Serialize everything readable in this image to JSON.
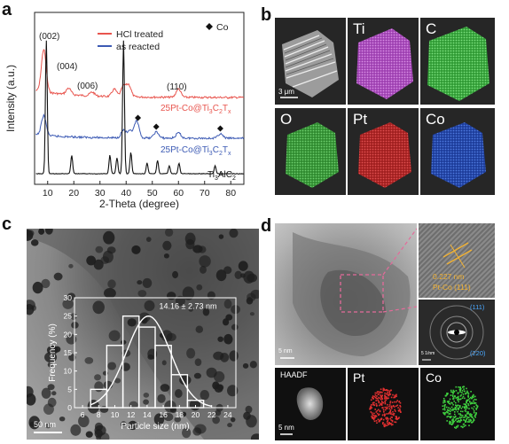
{
  "panels": {
    "a": {
      "letter": "a",
      "legend": [
        "HCl treated",
        "as reacted"
      ],
      "co_marker_label": "Co",
      "curve_labels": {
        "hcl_prefix": "25Pt-Co@Ti",
        "asr_prefix": "25Pt-Co@Ti",
        "ref_prefix": "Ti",
        "ref_suffix": "AlC"
      },
      "peaks": [
        "(002)",
        "(004)",
        "(006)",
        "(110)"
      ]
    },
    "b": {
      "letter": "b",
      "tiles": [
        "Ti",
        "C",
        "O",
        "Pt",
        "Co"
      ],
      "scale_bar": "3 μm"
    },
    "c": {
      "letter": "c",
      "scale_bar": "50 nm",
      "stats": "14.16 ± 2.73 nm"
    },
    "d": {
      "letter": "d",
      "lattice_spacing": "0.227 nm",
      "lattice_plane": "Pt-Co (111)",
      "saed_rings": [
        "(111)",
        "(220)"
      ],
      "scale_bar_hr": "5 nm",
      "saed_scale": "5 1/nm",
      "eds_labels": [
        "HAADF",
        "Pt",
        "Co"
      ],
      "scale_bar_eds": "5 nm"
    }
  },
  "chart_data": [
    {
      "type": "line",
      "title": "",
      "xlabel": "2-Theta (degree)",
      "ylabel": "Intensity (a.u.)",
      "xlim": [
        5,
        85
      ],
      "xticks": [
        10,
        20,
        30,
        40,
        50,
        60,
        70,
        80
      ],
      "yticks_shown": false,
      "legend_position": "top-center",
      "series": [
        {
          "name": "HCl treated",
          "color": "#e8554e",
          "peaks": [
            {
              "x": 8.5,
              "h": 0.8
            },
            {
              "x": 18.0,
              "h": 0.12
            },
            {
              "x": 27.0,
              "h": 0.07
            },
            {
              "x": 35.5,
              "h": 0.14
            },
            {
              "x": 39.0,
              "h": 0.2
            },
            {
              "x": 41.0,
              "h": 0.22
            },
            {
              "x": 60.0,
              "h": 0.16
            }
          ],
          "label": "25Pt-Co@Ti3C2Tx"
        },
        {
          "name": "as reacted",
          "color": "#3c5ab4",
          "peaks": [
            {
              "x": 8.5,
              "h": 0.45
            },
            {
              "x": 39.0,
              "h": 0.18
            },
            {
              "x": 41.5,
              "h": 0.15
            },
            {
              "x": 44.0,
              "h": 0.38
            },
            {
              "x": 51.5,
              "h": 0.14
            },
            {
              "x": 60.0,
              "h": 0.12
            },
            {
              "x": 76.0,
              "h": 0.1
            }
          ],
          "label": "25Pt-Co@Ti3C2Tx"
        },
        {
          "name": "",
          "color": "#111111",
          "peaks": [
            {
              "x": 9.5,
              "h": 1.0
            },
            {
              "x": 19.2,
              "h": 0.14
            },
            {
              "x": 33.8,
              "h": 0.14
            },
            {
              "x": 36.5,
              "h": 0.12
            },
            {
              "x": 39.0,
              "h": 1.0
            },
            {
              "x": 41.8,
              "h": 0.16
            },
            {
              "x": 48.0,
              "h": 0.08
            },
            {
              "x": 52.0,
              "h": 0.1
            },
            {
              "x": 56.5,
              "h": 0.06
            },
            {
              "x": 60.2,
              "h": 0.08
            },
            {
              "x": 74.0,
              "h": 0.06
            }
          ],
          "label": "Ti3AlC2"
        }
      ],
      "co_markers_x": [
        44.5,
        51.5,
        76.0
      ]
    },
    {
      "type": "bar",
      "title": "",
      "xlabel": "Particle size (nm)",
      "ylabel": "Frequency (%)",
      "xlim": [
        5,
        25
      ],
      "ylim": [
        0,
        30
      ],
      "xticks": [
        6,
        8,
        10,
        12,
        14,
        16,
        18,
        20,
        22,
        24
      ],
      "yticks": [
        0,
        5,
        10,
        15,
        20,
        25,
        30
      ],
      "bin_width": 2,
      "bins": [
        8,
        10,
        12,
        14,
        16,
        18,
        20
      ],
      "values": [
        5,
        17,
        25,
        22,
        17,
        9,
        2
      ],
      "fit": {
        "type": "gaussian",
        "mean": 14.16,
        "sd": 2.73,
        "peak": 25
      }
    }
  ]
}
